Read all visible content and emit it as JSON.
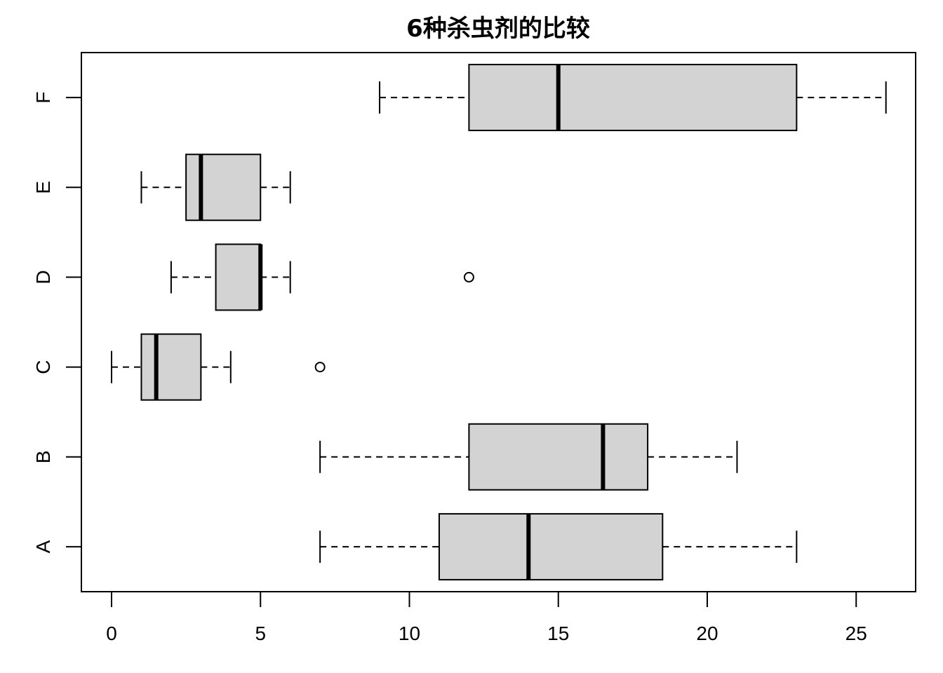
{
  "chart_data": {
    "type": "boxplot",
    "orientation": "horizontal",
    "title": "6种杀虫剂的比较",
    "xlabel": "",
    "ylabel": "",
    "xlim": [
      -1,
      27
    ],
    "xticks": [
      0,
      5,
      10,
      15,
      20,
      25
    ],
    "grid": false,
    "colors": {
      "box_fill": "#d3d3d3",
      "stroke": "#000000"
    },
    "categories": [
      "A",
      "B",
      "C",
      "D",
      "E",
      "F"
    ],
    "boxes": [
      {
        "name": "A",
        "whisker_low": 7,
        "q1": 11,
        "median": 14,
        "q3": 18.5,
        "whisker_high": 23,
        "outliers": []
      },
      {
        "name": "B",
        "whisker_low": 7,
        "q1": 12,
        "median": 16.5,
        "q3": 18,
        "whisker_high": 21,
        "outliers": []
      },
      {
        "name": "C",
        "whisker_low": 0,
        "q1": 1,
        "median": 1.5,
        "q3": 3,
        "whisker_high": 4,
        "outliers": [
          7
        ]
      },
      {
        "name": "D",
        "whisker_low": 2,
        "q1": 3.5,
        "median": 5,
        "q3": 5,
        "whisker_high": 6,
        "outliers": [
          12
        ]
      },
      {
        "name": "E",
        "whisker_low": 1,
        "q1": 2.5,
        "median": 3,
        "q3": 5,
        "whisker_high": 6,
        "outliers": []
      },
      {
        "name": "F",
        "whisker_low": 9,
        "q1": 12,
        "median": 15,
        "q3": 23,
        "whisker_high": 26,
        "outliers": []
      }
    ]
  }
}
